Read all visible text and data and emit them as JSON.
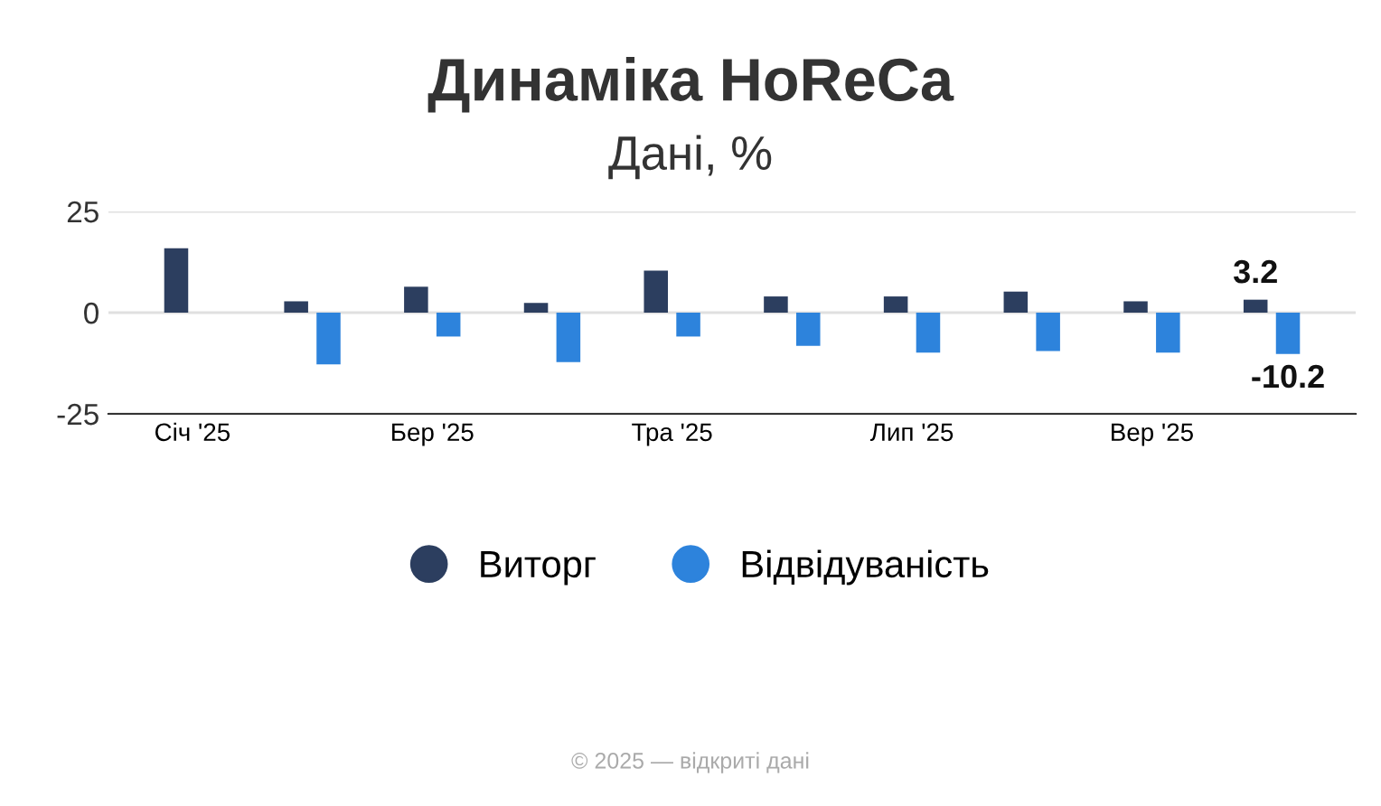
{
  "chart_data": {
    "type": "bar",
    "title": "Динаміка HoReCa",
    "subtitle": "Дані, %",
    "categories": [
      "Січ '25",
      null,
      "Бер '25",
      null,
      "Тра '25",
      null,
      "Лип '25",
      null,
      "Вер '25",
      null
    ],
    "series": [
      {
        "name": "Виторг",
        "color": "#2c3e5f",
        "values": [
          15.9,
          2.8,
          6.4,
          2.4,
          10.4,
          4.0,
          4.0,
          5.2,
          2.8,
          3.2
        ],
        "value_labels": [
          null,
          null,
          null,
          null,
          null,
          null,
          null,
          null,
          null,
          "3.2"
        ]
      },
      {
        "name": "Відвідуваність",
        "color": "#2d83dc",
        "values": [
          null,
          -12.8,
          -5.9,
          -12.2,
          -5.9,
          -8.2,
          -9.9,
          -9.5,
          -9.9,
          -10.2
        ],
        "value_labels": [
          null,
          null,
          null,
          null,
          null,
          null,
          null,
          null,
          null,
          "-10.2"
        ]
      }
    ],
    "ylim": [
      -25,
      25
    ],
    "yticks": [
      {
        "value": -25,
        "label": "-25"
      },
      0,
      25
    ],
    "grid": "y",
    "legend": "bottom",
    "annotations": [
      "© 2025 — відкриті дані"
    ]
  }
}
